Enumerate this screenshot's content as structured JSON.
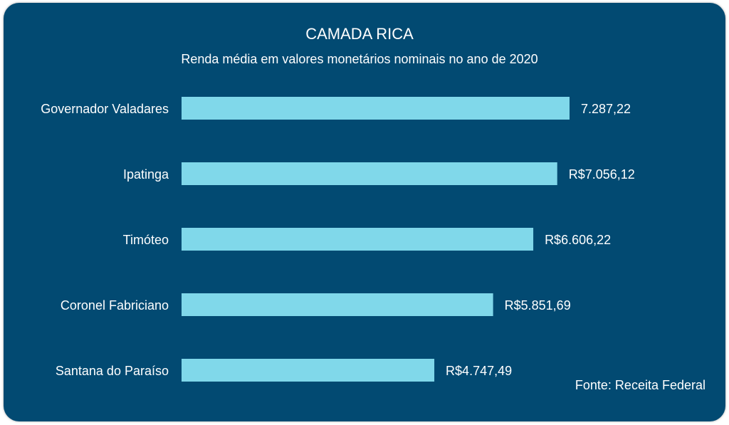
{
  "colors": {
    "background": "#024a72",
    "bar": "#80d8ea",
    "text": "#ffffff"
  },
  "chart_data": {
    "type": "bar",
    "orientation": "horizontal",
    "title": "CAMADA RICA",
    "subtitle": "Renda média em valores monetários nominais no ano de 2020",
    "categories": [
      "Governador Valadares",
      "Ipatinga",
      "Timóteo",
      "Coronel Fabriciano",
      "Santana do Paraíso"
    ],
    "values": [
      7287.22,
      7056.12,
      6606.22,
      5851.69,
      4747.49
    ],
    "data_labels": [
      "7.287,22",
      "R$7.056,12",
      "R$6.606,22",
      "R$5.851,69",
      "R$4.747,49"
    ],
    "xlim": [
      0,
      7287.22
    ],
    "grid": false,
    "legend": "none",
    "source": "Fonte: Receita Federal"
  }
}
